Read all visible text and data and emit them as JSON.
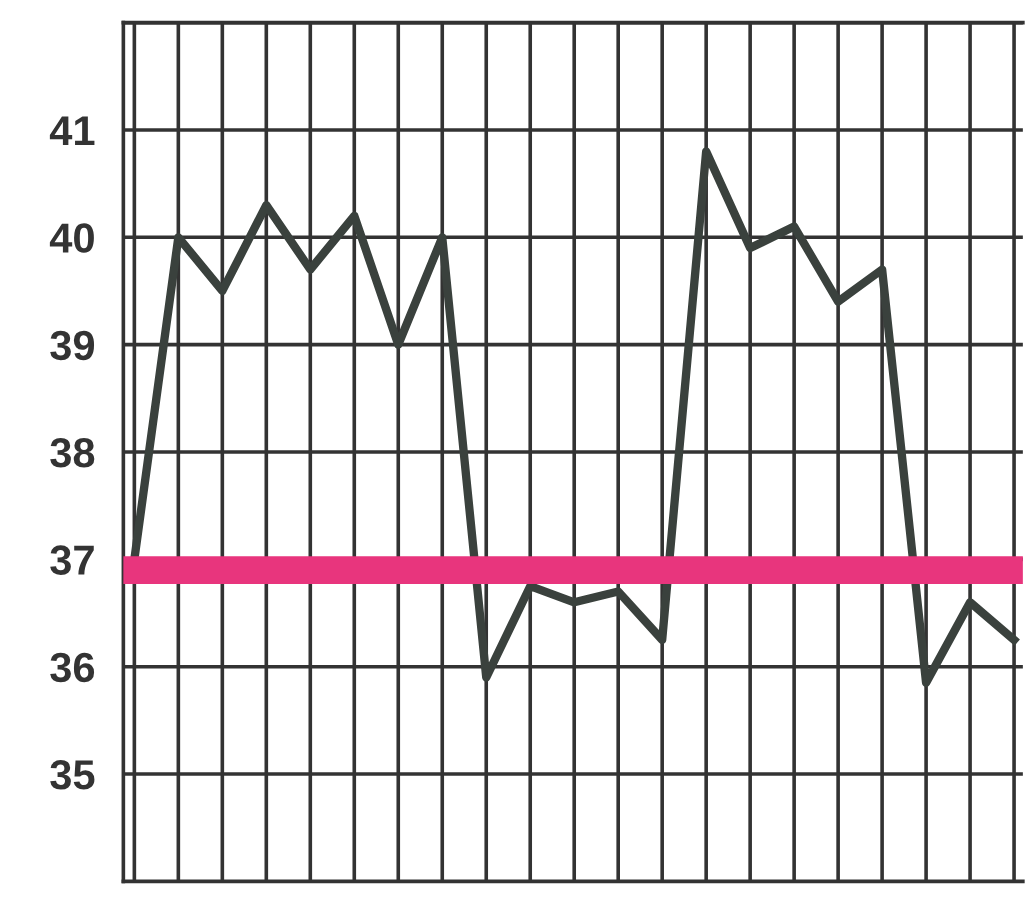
{
  "chart_data": {
    "type": "line",
    "categories": [
      null,
      null,
      null,
      null,
      null,
      null,
      null,
      null,
      null,
      null,
      null,
      null,
      null,
      null,
      null,
      null,
      null,
      null,
      null,
      null,
      null
    ],
    "series": [
      {
        "color": "#3a413d",
        "values": [
          37.0,
          40.0,
          39.5,
          40.3,
          39.7,
          40.2,
          39.0,
          40.0,
          35.9,
          36.75,
          36.6,
          36.7,
          36.25,
          40.8,
          39.9,
          40.1,
          39.4,
          39.7,
          35.85,
          36.6,
          36.25
        ]
      }
    ],
    "ylim": [
      34,
      42
    ],
    "yticks": [
      35,
      36,
      37,
      38,
      39,
      40,
      41,
      {
        "value": 42,
        "label": null
      }
    ],
    "grid": true,
    "tick_labels": "y",
    "marker": "none",
    "line_style": "solid",
    "ref_lines": [
      {
        "axis": "y",
        "value": 36.9,
        "color": "#e8357d"
      }
    ]
  }
}
